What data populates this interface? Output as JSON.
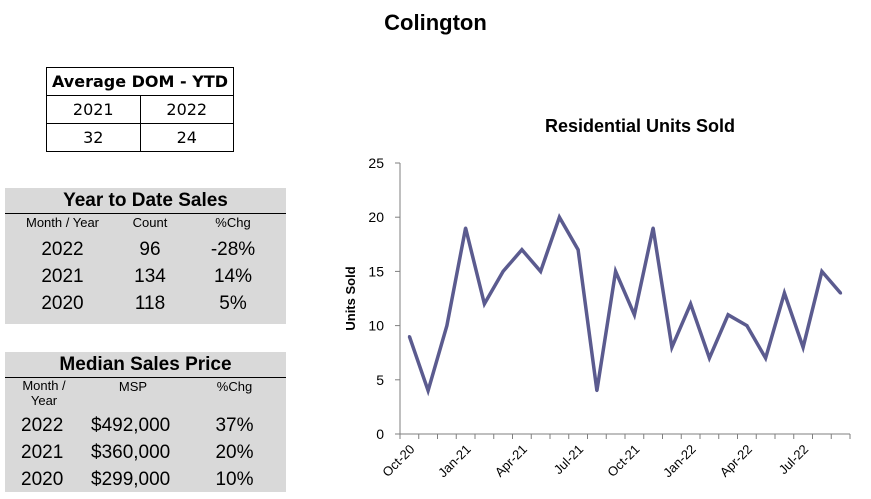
{
  "title": "Colington",
  "dom_table": {
    "header": "Average DOM - YTD",
    "years": [
      "2021",
      "2022"
    ],
    "values": [
      "32",
      "24"
    ]
  },
  "ytd_sales": {
    "title": "Year to Date Sales",
    "columns": [
      "Month / Year",
      "Count",
      "%Chg"
    ],
    "rows": [
      {
        "year": "2022",
        "count": "96",
        "chg": "-28%"
      },
      {
        "year": "2021",
        "count": "134",
        "chg": "14%"
      },
      {
        "year": "2020",
        "count": "118",
        "chg": "5%"
      }
    ]
  },
  "median_price": {
    "title": "Median Sales Price",
    "columns": [
      "Month / Year",
      "MSP",
      "%Chg"
    ],
    "rows": [
      {
        "year": "2022",
        "price": "$492,000",
        "chg": "37%"
      },
      {
        "year": "2021",
        "price": "$360,000",
        "chg": "20%"
      },
      {
        "year": "2020",
        "price": "$299,000",
        "chg": "10%"
      }
    ]
  },
  "chart_data": {
    "type": "line",
    "title": "Residential Units Sold",
    "xlabel": "",
    "ylabel": "Units Sold",
    "ylim": [
      0,
      25
    ],
    "yticks": [
      0,
      5,
      10,
      15,
      20,
      25
    ],
    "grid": false,
    "x": [
      "Oct-20",
      "Nov-20",
      "Dec-20",
      "Jan-21",
      "Feb-21",
      "Mar-21",
      "Apr-21",
      "May-21",
      "Jun-21",
      "Jul-21",
      "Aug-21",
      "Sep-21",
      "Oct-21",
      "Nov-21",
      "Dec-21",
      "Jan-22",
      "Feb-22",
      "Mar-22",
      "Apr-22",
      "May-22",
      "Jun-22",
      "Jul-22",
      "Aug-22",
      "Sep-22"
    ],
    "tick_labels": [
      "Oct-20",
      "Jan-21",
      "Apr-21",
      "Jul-21",
      "Oct-21",
      "Jan-22",
      "Apr-22",
      "Jul-22"
    ],
    "series": [
      {
        "name": "Units Sold",
        "color": "#5b5b8f",
        "values": [
          9,
          4,
          10,
          19,
          12,
          15,
          17,
          15,
          20,
          17,
          4,
          15,
          11,
          19,
          8,
          12,
          7,
          11,
          10,
          7,
          13,
          8,
          15,
          13
        ]
      }
    ]
  }
}
